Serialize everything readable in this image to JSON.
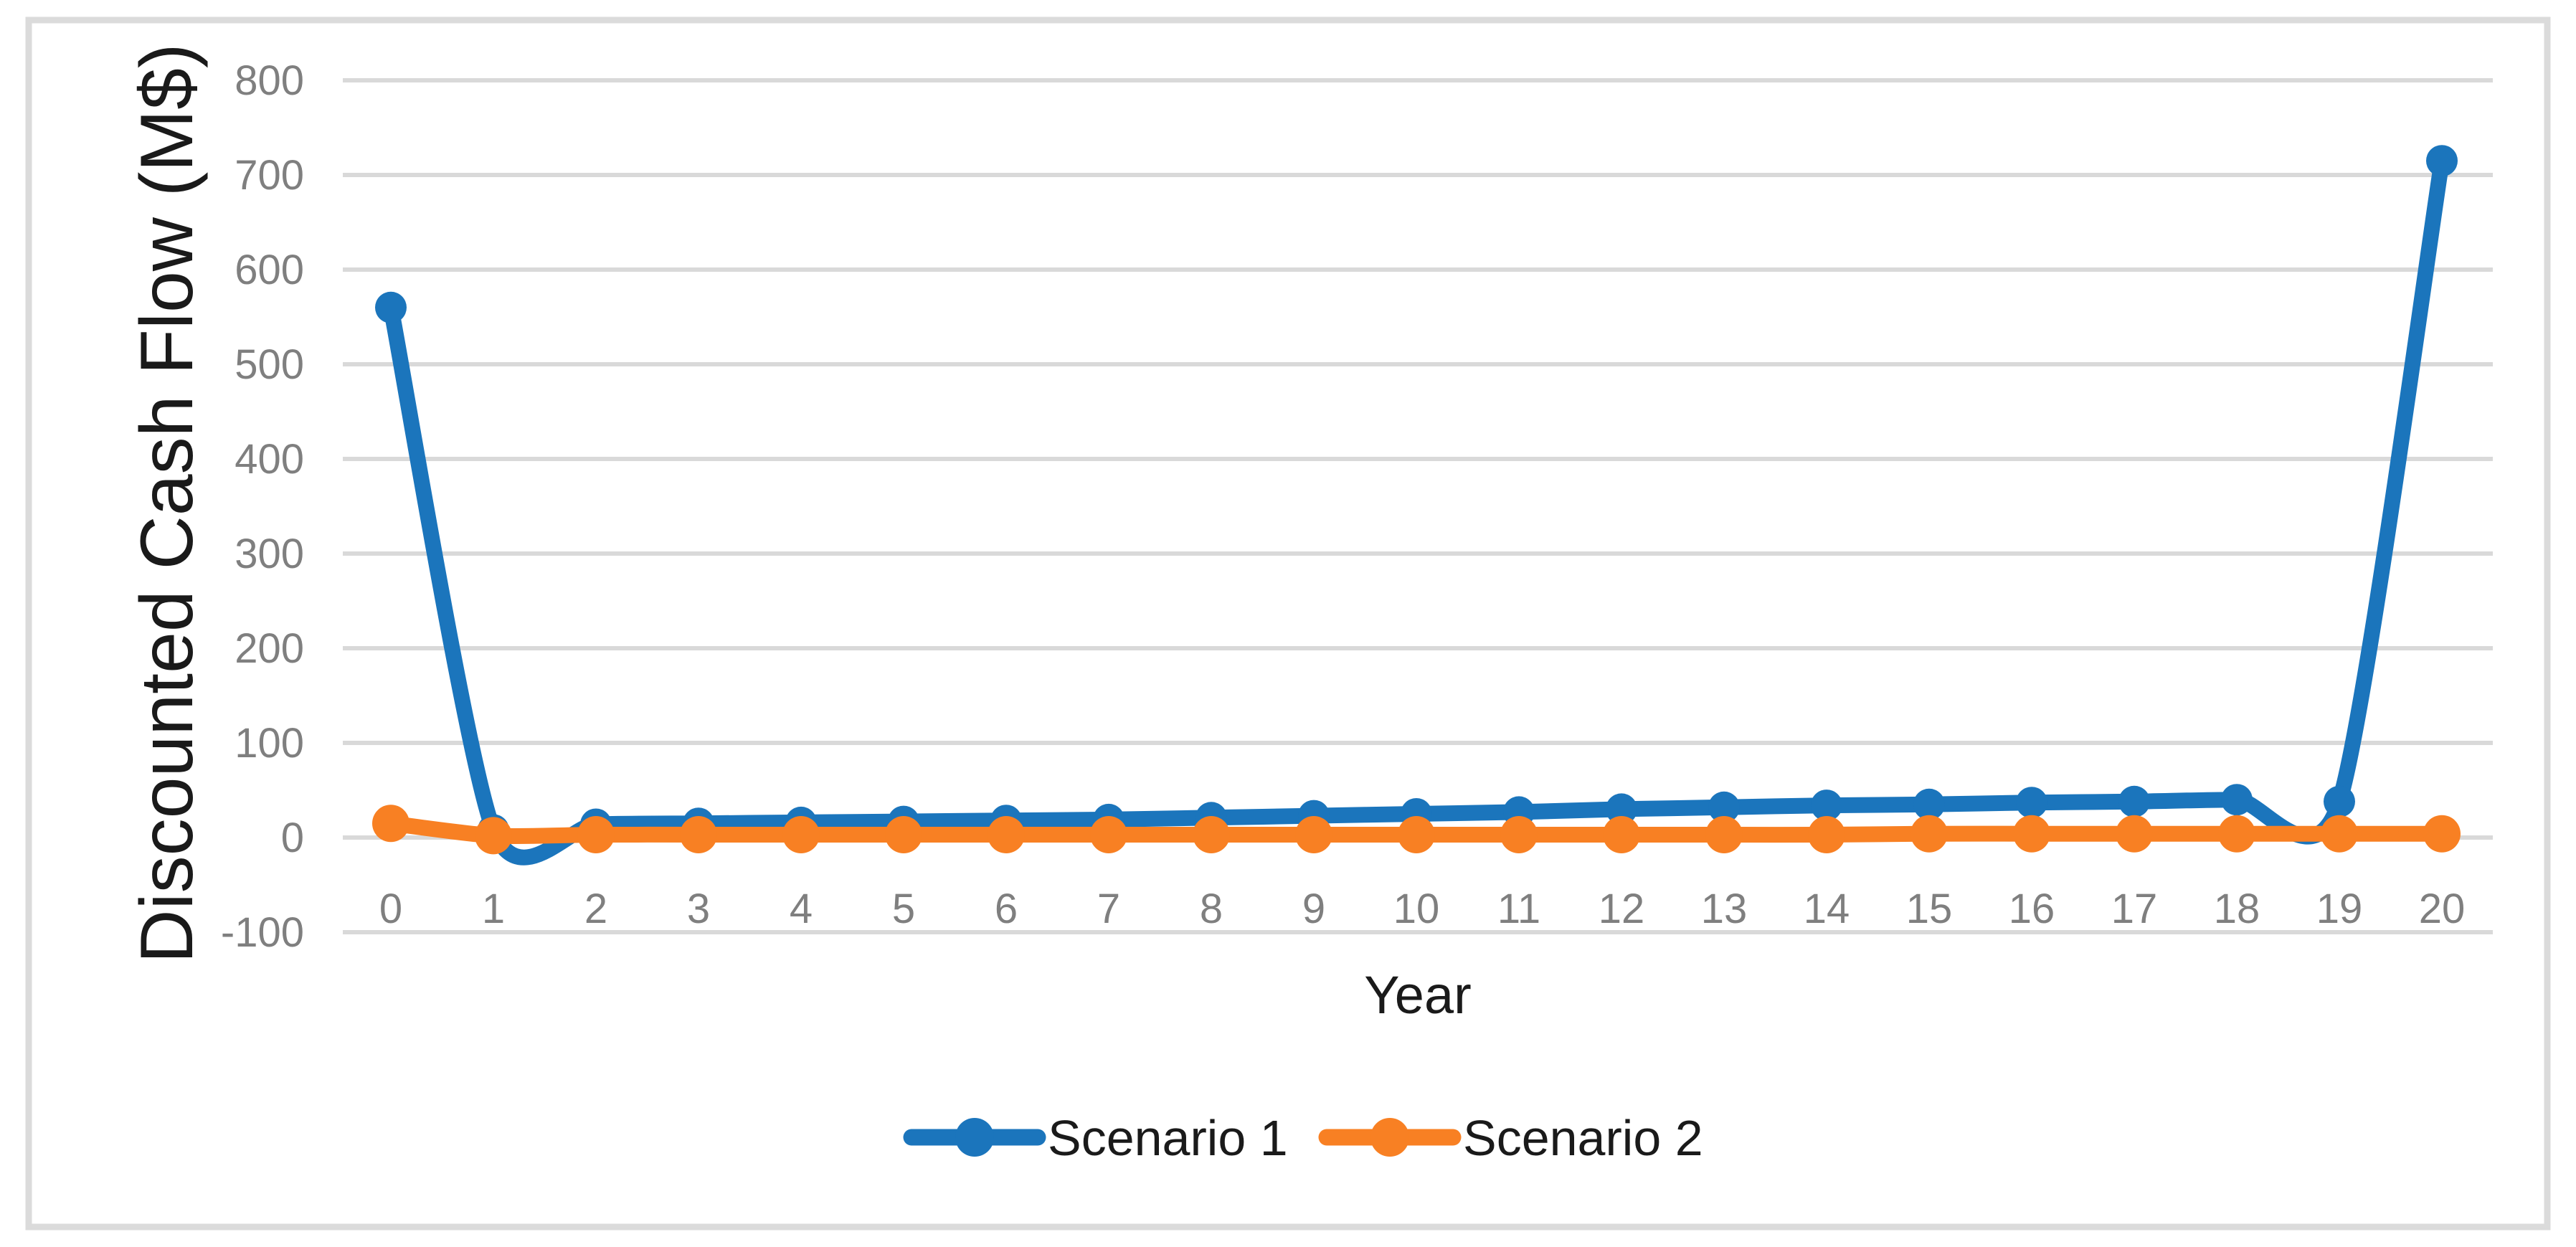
{
  "figure": {
    "background": "#FFFFFF",
    "frame_color": "#DBDBDB"
  },
  "chart_data": {
    "type": "line",
    "title": "",
    "xlabel": "Year",
    "ylabel": "Discounted Cash Flow (M$)",
    "x": [
      0,
      1,
      2,
      3,
      4,
      5,
      6,
      7,
      8,
      9,
      10,
      11,
      12,
      13,
      14,
      15,
      16,
      17,
      18,
      19,
      20
    ],
    "series": [
      {
        "name": "Scenario 1",
        "color": "#1B75BC",
        "values": [
          560,
          8,
          14,
          15,
          16,
          17,
          18,
          19,
          21,
          23,
          25,
          27,
          30,
          32,
          34,
          35,
          37,
          38,
          40,
          38,
          715
        ]
      },
      {
        "name": "Scenario 2",
        "color": "#F88023",
        "values": [
          15,
          2,
          3,
          3,
          3,
          3,
          3,
          3,
          3,
          3,
          3,
          3,
          3,
          3,
          3,
          4,
          4,
          4,
          4,
          4,
          4
        ]
      }
    ],
    "ylim": [
      -100,
      800
    ],
    "yticks": [
      -100,
      0,
      100,
      200,
      300,
      400,
      500,
      600,
      700,
      800
    ],
    "xticks": [
      0,
      1,
      2,
      3,
      4,
      5,
      6,
      7,
      8,
      9,
      10,
      11,
      12,
      13,
      14,
      15,
      16,
      17,
      18,
      19,
      20
    ],
    "grid": true,
    "gridline_color": "#D9D9D9",
    "tick_label_color": "#7F7F7F",
    "axis_title_color": "#1A1A1A",
    "legend_text_color": "#1A1A1A",
    "legend_position": "bottom",
    "smooth": true,
    "markers": true
  }
}
